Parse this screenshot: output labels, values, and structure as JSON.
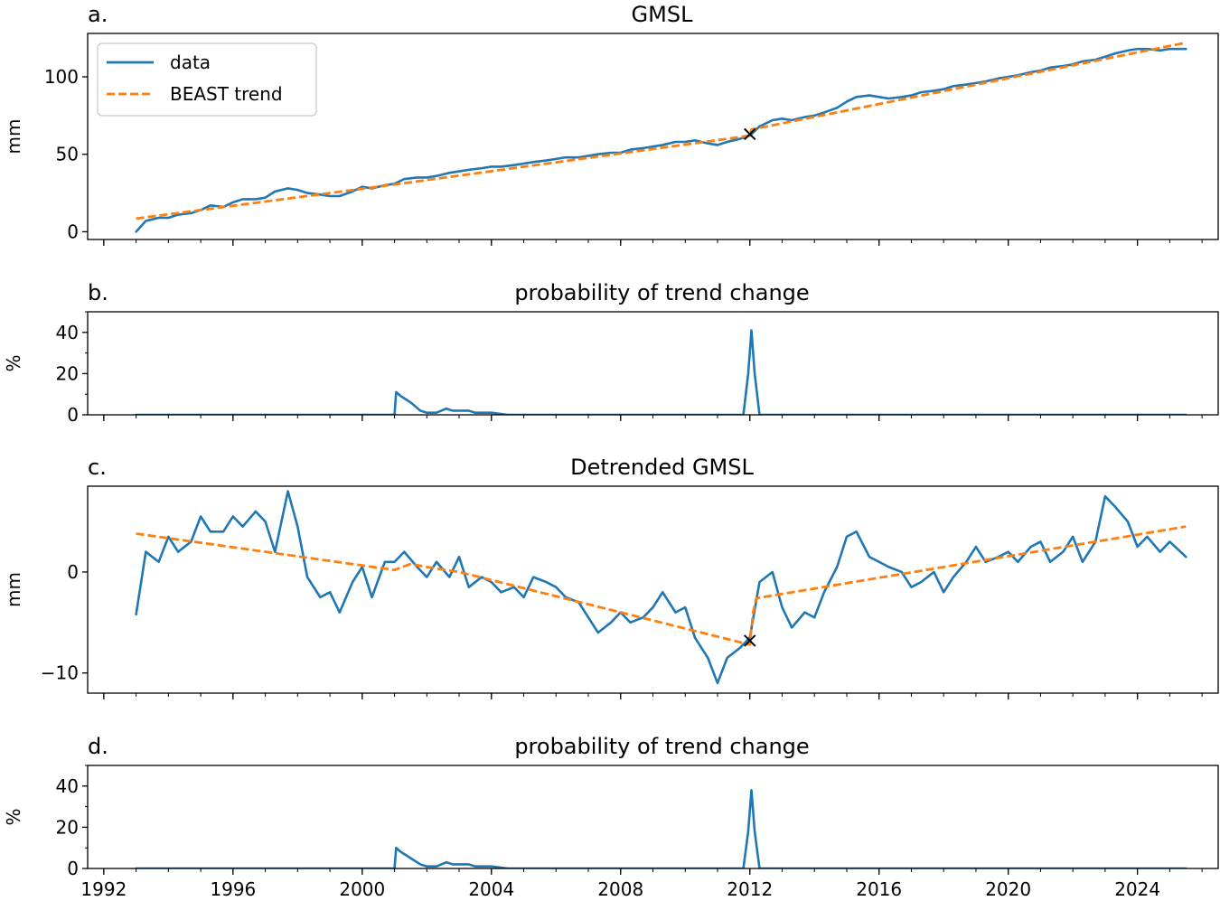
{
  "chart_data": [
    {
      "panel_label": "a.",
      "type": "line",
      "title": "GMSL",
      "ylabel": "mm",
      "xlim": [
        1991.5,
        2026.5
      ],
      "ylim": [
        -5,
        128
      ],
      "yticks": [
        0,
        50,
        100
      ],
      "legend": {
        "placement": "top-left",
        "entries": [
          "data",
          "BEAST trend"
        ]
      },
      "series": [
        {
          "name": "data",
          "color": "#1f77b4",
          "style": "solid",
          "x": [
            1993.0,
            1993.3,
            1993.7,
            1994.0,
            1994.3,
            1994.7,
            1995.0,
            1995.3,
            1995.7,
            1996.0,
            1996.3,
            1996.7,
            1997.0,
            1997.3,
            1997.7,
            1998.0,
            1998.3,
            1998.7,
            1999.0,
            1999.3,
            1999.7,
            2000.0,
            2000.3,
            2000.7,
            2001.0,
            2001.3,
            2001.7,
            2002.0,
            2002.3,
            2002.7,
            2003.0,
            2003.3,
            2003.7,
            2004.0,
            2004.3,
            2004.7,
            2005.0,
            2005.3,
            2005.7,
            2006.0,
            2006.3,
            2006.7,
            2007.0,
            2007.3,
            2007.7,
            2008.0,
            2008.3,
            2008.7,
            2009.0,
            2009.3,
            2009.7,
            2010.0,
            2010.3,
            2010.7,
            2011.0,
            2011.3,
            2011.7,
            2012.0,
            2012.3,
            2012.7,
            2013.0,
            2013.3,
            2013.7,
            2014.0,
            2014.3,
            2014.7,
            2015.0,
            2015.3,
            2015.7,
            2016.0,
            2016.3,
            2016.7,
            2017.0,
            2017.3,
            2017.7,
            2018.0,
            2018.3,
            2018.7,
            2019.0,
            2019.3,
            2019.7,
            2020.0,
            2020.3,
            2020.7,
            2021.0,
            2021.3,
            2021.7,
            2022.0,
            2022.3,
            2022.7,
            2023.0,
            2023.3,
            2023.7,
            2024.0,
            2024.3,
            2024.7,
            2025.0,
            2025.5
          ],
          "y": [
            0,
            7,
            9,
            9,
            11,
            12,
            14,
            17,
            16,
            19,
            21,
            21,
            22,
            26,
            28,
            27,
            25,
            24,
            23,
            23,
            26,
            29,
            28,
            30,
            31,
            34,
            35,
            35,
            36,
            38,
            39,
            40,
            41,
            42,
            42,
            43,
            44,
            45,
            46,
            47,
            48,
            48,
            49,
            50,
            51,
            51,
            53,
            54,
            55,
            56,
            58,
            58,
            59,
            57,
            56,
            58,
            60,
            62,
            68,
            72,
            73,
            72,
            74,
            75,
            77,
            80,
            84,
            87,
            88,
            87,
            86,
            87,
            88,
            90,
            91,
            92,
            94,
            95,
            96,
            97,
            99,
            100,
            101,
            103,
            104,
            106,
            107,
            108,
            110,
            111,
            113,
            115,
            117,
            118,
            118,
            117,
            118,
            118
          ]
        },
        {
          "name": "BEAST trend",
          "color": "#ff7f0e",
          "style": "dashed",
          "x": [
            1993.0,
            2001.0,
            2012.0,
            2012.05,
            2025.5
          ],
          "y": [
            8.5,
            30.5,
            62.0,
            66.0,
            122.0
          ]
        }
      ],
      "annotations": [
        {
          "marker": "x",
          "x": 2012.0,
          "y": 63.0
        }
      ]
    },
    {
      "panel_label": "b.",
      "type": "line",
      "title": "probability of trend change",
      "ylabel": "%",
      "xlim": [
        1991.5,
        2026.5
      ],
      "ylim": [
        0,
        50
      ],
      "yticks": [
        0,
        20,
        40
      ],
      "series": [
        {
          "color": "#1f77b4",
          "x": [
            1993.0,
            2001.0,
            2001.05,
            2001.2,
            2001.5,
            2001.8,
            2002.0,
            2002.3,
            2002.6,
            2002.8,
            2003.0,
            2003.3,
            2003.5,
            2004.0,
            2004.5,
            2011.8,
            2011.95,
            2012.05,
            2012.15,
            2012.3,
            2025.5
          ],
          "y": [
            0,
            0,
            11,
            9,
            6,
            2,
            1,
            1,
            3,
            2,
            2,
            2,
            1,
            1,
            0,
            0,
            20,
            41,
            20,
            0,
            0
          ]
        }
      ]
    },
    {
      "panel_label": "c.",
      "type": "line",
      "title": "Detrended GMSL",
      "ylabel": "mm",
      "xlim": [
        1991.5,
        2026.5
      ],
      "ylim": [
        -12,
        8.5
      ],
      "yticks": [
        -10,
        0
      ],
      "series": [
        {
          "color": "#1f77b4",
          "x": [
            1993.0,
            1993.3,
            1993.7,
            1994.0,
            1994.3,
            1994.7,
            1995.0,
            1995.3,
            1995.7,
            1996.0,
            1996.3,
            1996.7,
            1997.0,
            1997.3,
            1997.7,
            1998.0,
            1998.3,
            1998.7,
            1999.0,
            1999.3,
            1999.7,
            2000.0,
            2000.3,
            2000.7,
            2001.0,
            2001.3,
            2001.7,
            2002.0,
            2002.3,
            2002.7,
            2003.0,
            2003.3,
            2003.7,
            2004.0,
            2004.3,
            2004.7,
            2005.0,
            2005.3,
            2005.7,
            2006.0,
            2006.3,
            2006.7,
            2007.0,
            2007.3,
            2007.7,
            2008.0,
            2008.3,
            2008.7,
            2009.0,
            2009.3,
            2009.7,
            2010.0,
            2010.3,
            2010.7,
            2011.0,
            2011.3,
            2011.7,
            2012.0,
            2012.3,
            2012.7,
            2013.0,
            2013.3,
            2013.7,
            2014.0,
            2014.3,
            2014.7,
            2015.0,
            2015.3,
            2015.7,
            2016.0,
            2016.3,
            2016.7,
            2017.0,
            2017.3,
            2017.7,
            2018.0,
            2018.3,
            2018.7,
            2019.0,
            2019.3,
            2019.7,
            2020.0,
            2020.3,
            2020.7,
            2021.0,
            2021.3,
            2021.7,
            2022.0,
            2022.3,
            2022.7,
            2023.0,
            2023.3,
            2023.7,
            2024.0,
            2024.3,
            2024.7,
            2025.0,
            2025.5
          ],
          "y": [
            -4.2,
            2.0,
            1.0,
            3.5,
            2.0,
            3.0,
            5.5,
            4.0,
            4.0,
            5.5,
            4.5,
            6.0,
            5.0,
            2.0,
            8.0,
            4.5,
            -0.5,
            -2.5,
            -2.0,
            -4.0,
            -1.0,
            0.5,
            -2.5,
            1.0,
            1.0,
            2.0,
            0.5,
            -0.5,
            1.0,
            -0.5,
            1.5,
            -1.5,
            -0.5,
            -1.0,
            -2.0,
            -1.5,
            -2.5,
            -0.5,
            -1.0,
            -1.5,
            -2.5,
            -3.0,
            -4.5,
            -6.0,
            -5.0,
            -4.0,
            -5.0,
            -4.5,
            -3.5,
            -2.0,
            -4.0,
            -3.5,
            -6.5,
            -8.5,
            -11.0,
            -8.5,
            -7.5,
            -6.5,
            -1.0,
            0.0,
            -3.5,
            -5.5,
            -4.0,
            -4.5,
            -2.0,
            0.5,
            3.5,
            4.0,
            1.5,
            1.0,
            0.5,
            0.0,
            -1.5,
            -1.0,
            0.0,
            -2.0,
            -0.5,
            1.0,
            2.5,
            1.0,
            1.5,
            2.0,
            1.0,
            2.5,
            3.0,
            1.0,
            2.0,
            3.5,
            1.0,
            3.0,
            7.5,
            6.5,
            5.0,
            2.5,
            3.5,
            2.0,
            3.0,
            1.5
          ]
        },
        {
          "color": "#ff7f0e",
          "style": "dashed",
          "x": [
            1993.0,
            2001.0,
            2001.5,
            2002.0,
            2003.0,
            2012.0,
            2012.1,
            2012.2,
            2025.5
          ],
          "y": [
            3.8,
            0.2,
            0.8,
            0.5,
            0.0,
            -7.2,
            -4.0,
            -2.6,
            4.5
          ]
        }
      ],
      "annotations": [
        {
          "marker": "x",
          "x": 2012.0,
          "y": -6.8
        }
      ]
    },
    {
      "panel_label": "d.",
      "type": "line",
      "title": "probability of trend change",
      "ylabel": "%",
      "xlim": [
        1991.5,
        2026.5
      ],
      "ylim": [
        0,
        50
      ],
      "yticks": [
        0,
        20,
        40
      ],
      "xticks": [
        1992,
        1996,
        2000,
        2004,
        2008,
        2012,
        2016,
        2020,
        2024
      ],
      "series": [
        {
          "color": "#1f77b4",
          "x": [
            1993.0,
            2001.0,
            2001.05,
            2001.2,
            2001.5,
            2001.8,
            2002.0,
            2002.3,
            2002.6,
            2002.8,
            2003.0,
            2003.3,
            2003.5,
            2004.0,
            2004.5,
            2011.8,
            2011.95,
            2012.05,
            2012.15,
            2012.3,
            2025.5
          ],
          "y": [
            0,
            0,
            10,
            8,
            5,
            2,
            1,
            1,
            3,
            2,
            2,
            2,
            1,
            1,
            0,
            0,
            18,
            38,
            18,
            0,
            0
          ]
        }
      ]
    }
  ]
}
